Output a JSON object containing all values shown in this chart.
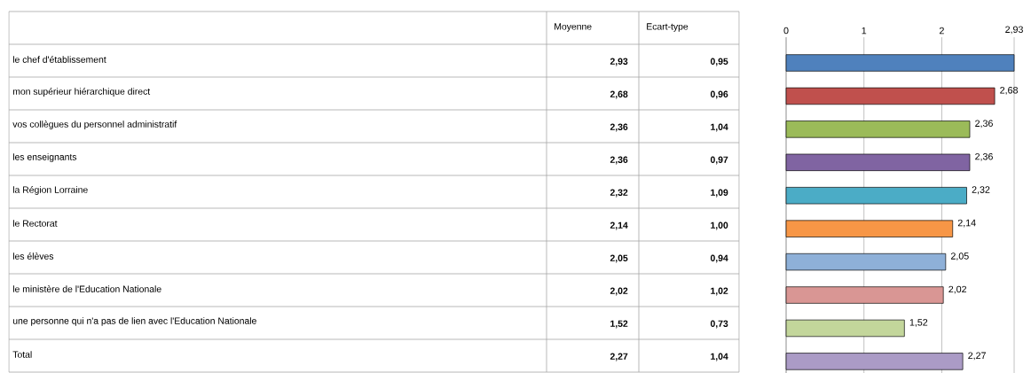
{
  "chart_data": [
    {
      "type": "other",
      "categories": [
        "le chef d'établissement",
        "mon supérieur hiérarchique direct",
        "vos collègues du personnel administratif",
        "les enseignants",
        "la Région Lorraine",
        "le Rectorat",
        "les élèves",
        "le ministère de l'Education Nationale",
        "une personne qui n'a pas de lien avec l'Education Nationale",
        "Total"
      ],
      "series": [
        {
          "name": "Moyenne",
          "values": [
            2.93,
            2.68,
            2.36,
            2.36,
            2.32,
            2.14,
            2.05,
            2.02,
            1.52,
            2.27
          ],
          "value_labels": [
            "2,93",
            "2,68",
            "2,36",
            "2,36",
            "2,32",
            "2,14",
            "2,05",
            "2,02",
            "1,52",
            "2,27"
          ]
        },
        {
          "name": "Ecart-type",
          "values": [
            0.95,
            0.96,
            1.04,
            0.97,
            1.09,
            1.0,
            0.94,
            1.02,
            0.73,
            1.04
          ],
          "value_labels": [
            "0,95",
            "0,96",
            "1,04",
            "0,97",
            "1,09",
            "1,00",
            "0,94",
            "1,02",
            "0,73",
            "1,04"
          ]
        }
      ]
    },
    {
      "type": "bar",
      "orientation": "horizontal",
      "categories": [
        null,
        null,
        null,
        null,
        null,
        null,
        null,
        null,
        null,
        null
      ],
      "values": [
        2.93,
        2.68,
        2.36,
        2.36,
        2.32,
        2.14,
        2.05,
        2.02,
        1.52,
        2.27
      ],
      "value_labels": [
        null,
        "2,68",
        "2,36",
        "2,36",
        "2,32",
        "2,14",
        "2,05",
        "2,02",
        "1,52",
        "2,27"
      ],
      "colors": [
        "#4f81bd",
        "#c0504d",
        "#9bbb59",
        "#8064a2",
        "#4bacc6",
        "#f79646",
        "#8eb0d8",
        "#d99694",
        "#c3d69b",
        "#ab9bc6"
      ],
      "xlim": [
        0,
        2.93
      ],
      "xticks": [
        0,
        1,
        2,
        {
          "value": 2.93,
          "label": "2,93"
        }
      ],
      "grid": "x"
    }
  ]
}
